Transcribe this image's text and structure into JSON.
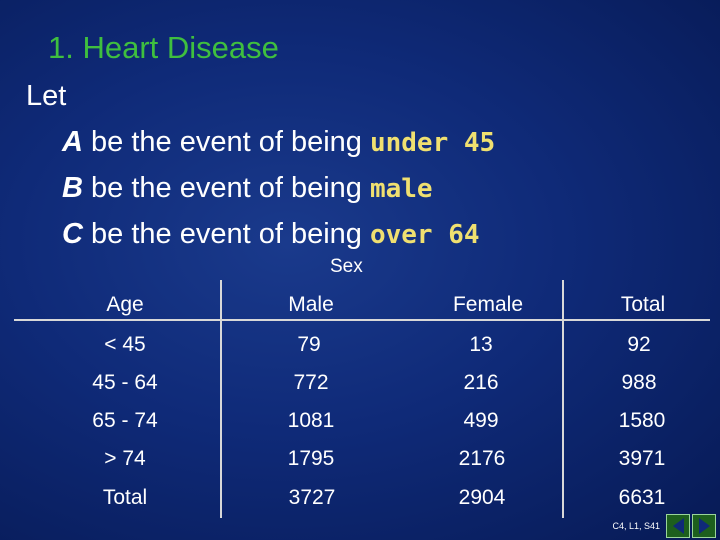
{
  "slide": {
    "title": "1.  Heart Disease",
    "let_label": "Let",
    "events": [
      {
        "letter": "A",
        "text": " be the event of being ",
        "highlight": "under 45"
      },
      {
        "letter": "B",
        "text": " be the event of being ",
        "highlight": "male"
      },
      {
        "letter": "C",
        "text": " be the event of being ",
        "highlight": "over 64"
      }
    ],
    "highlight_color": "#f0e070",
    "title_color": "#3fbf3f"
  },
  "table": {
    "group_header": "Sex",
    "headers": [
      "Age",
      "Male",
      "Female",
      "Total"
    ],
    "rows": [
      [
        "< 45",
        "79",
        "13",
        "92"
      ],
      [
        "45 - 64",
        "772",
        "216",
        "988"
      ],
      [
        "65 - 74",
        "1081",
        "499",
        "1580"
      ],
      [
        "> 74",
        "1795",
        "2176",
        "3971"
      ],
      [
        "Total",
        "3727",
        "2904",
        "6631"
      ]
    ]
  },
  "footer": {
    "slide_label": "C4, L1, S41",
    "prev_icon": "triangle-left-icon",
    "next_icon": "triangle-right-icon"
  }
}
